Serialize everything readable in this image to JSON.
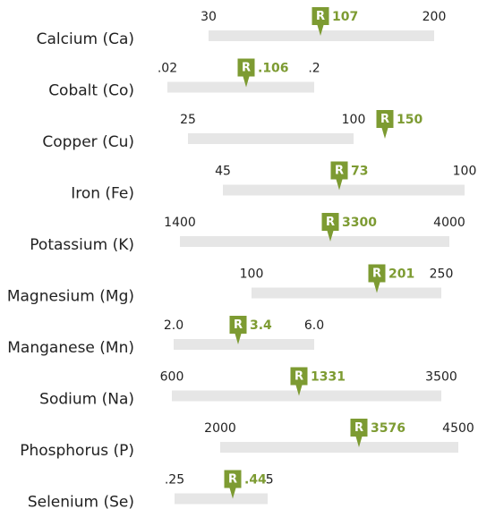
{
  "marker_label": "R",
  "rows": [
    {
      "name": "Calcium (Ca)",
      "low": "30",
      "high": "200",
      "result": "107"
    },
    {
      "name": "Cobalt (Co)",
      "low": ".02",
      "high": ".2",
      "result": ".106"
    },
    {
      "name": "Copper (Cu)",
      "low": "25",
      "high": "100",
      "result": "150"
    },
    {
      "name": "Iron (Fe)",
      "low": "45",
      "high": "100",
      "result": "73"
    },
    {
      "name": "Potassium (K)",
      "low": "1400",
      "high": "4000",
      "result": "3300"
    },
    {
      "name": "Magnesium (Mg)",
      "low": "100",
      "high": "250",
      "result": "201"
    },
    {
      "name": "Manganese (Mn)",
      "low": "2.0",
      "high": "6.0",
      "result": "3.4"
    },
    {
      "name": "Sodium (Na)",
      "low": "600",
      "high": "3500",
      "result": "1331"
    },
    {
      "name": "Phosphorus (P)",
      "low": "2000",
      "high": "4500",
      "result": "3576"
    },
    {
      "name": "Selenium (Se)",
      "low": ".25",
      "high": ".5",
      "result": ".44"
    }
  ]
}
